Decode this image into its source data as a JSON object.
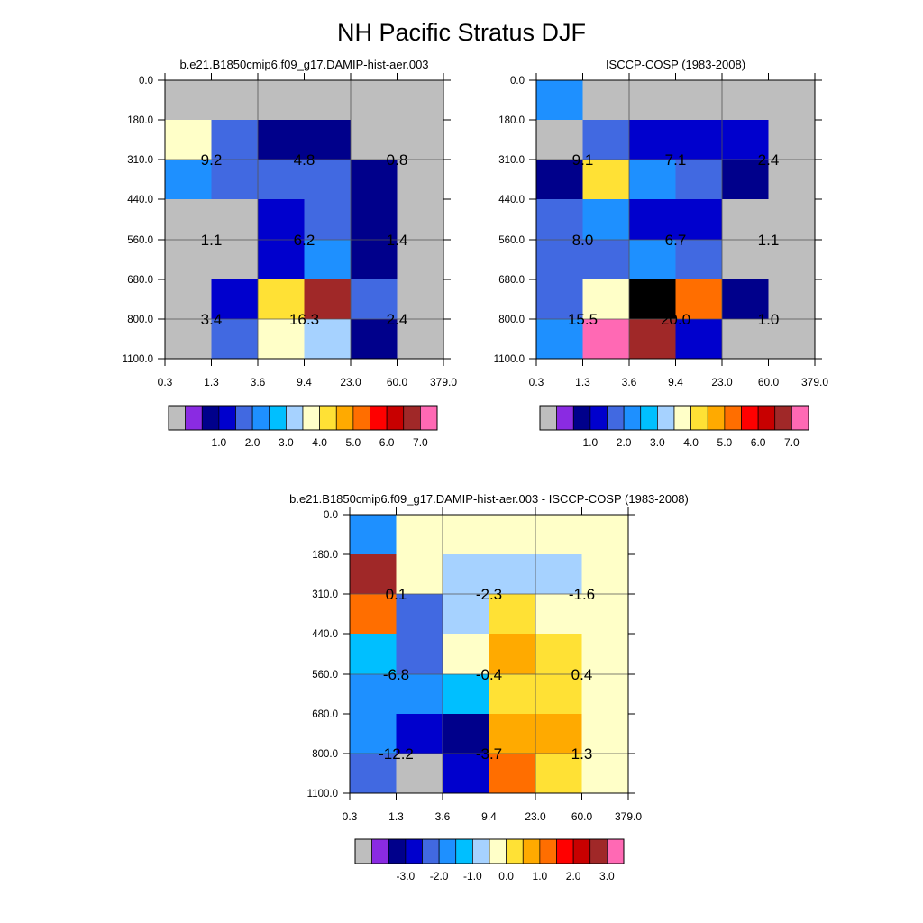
{
  "figure": {
    "title": "NH Pacific Stratus DJF"
  },
  "chart_data": [
    {
      "type": "heatmap",
      "title": "b.e21.B1850cmip6.f09_g17.DAMIP-hist-aer.003",
      "x_ticks": [
        "0.3",
        "1.3",
        "3.6",
        "9.4",
        "23.0",
        "60.0",
        "379.0"
      ],
      "y_ticks": [
        "0.0",
        "180.0",
        "310.0",
        "440.0",
        "560.0",
        "680.0",
        "800.0",
        "1100.0"
      ],
      "colorbar_labels": [
        "1.0",
        "2.0",
        "3.0",
        "4.0",
        "5.0",
        "6.0",
        "7.0"
      ],
      "cells": [
        [
          0,
          0,
          0,
          0,
          0,
          0
        ],
        [
          8,
          4,
          2,
          2,
          0,
          0
        ],
        [
          5,
          4,
          4,
          4,
          2,
          0
        ],
        [
          0,
          0,
          3,
          4,
          2,
          0
        ],
        [
          0,
          0,
          3,
          5,
          2,
          0
        ],
        [
          0,
          3,
          9,
          14,
          4,
          0
        ],
        [
          0,
          4,
          8,
          7,
          2,
          0
        ]
      ],
      "sums": [
        {
          "r": 1,
          "c": 1,
          "v": "9.2"
        },
        {
          "r": 1,
          "c": 3,
          "v": "4.8"
        },
        {
          "r": 1,
          "c": 5,
          "v": "0.8"
        },
        {
          "r": 3,
          "c": 1,
          "v": "1.1"
        },
        {
          "r": 3,
          "c": 3,
          "v": "6.2"
        },
        {
          "r": 3,
          "c": 5,
          "v": "1.4"
        },
        {
          "r": 5,
          "c": 1,
          "v": "3.4"
        },
        {
          "r": 5,
          "c": 3,
          "v": "16.3"
        },
        {
          "r": 5,
          "c": 5,
          "v": "2.4"
        }
      ]
    },
    {
      "type": "heatmap",
      "title": "ISCCP-COSP (1983-2008)",
      "x_ticks": [
        "0.3",
        "1.3",
        "3.6",
        "9.4",
        "23.0",
        "60.0",
        "379.0"
      ],
      "y_ticks": [
        "0.0",
        "180.0",
        "310.0",
        "440.0",
        "560.0",
        "680.0",
        "800.0",
        "1100.0"
      ],
      "colorbar_labels": [
        "1.0",
        "2.0",
        "3.0",
        "4.0",
        "5.0",
        "6.0",
        "7.0"
      ],
      "cells": [
        [
          5,
          0,
          0,
          0,
          0,
          0
        ],
        [
          0,
          4,
          3,
          3,
          3,
          0
        ],
        [
          2,
          9,
          5,
          4,
          2,
          0
        ],
        [
          4,
          5,
          3,
          3,
          0,
          0
        ],
        [
          4,
          4,
          5,
          4,
          0,
          0
        ],
        [
          4,
          8,
          16,
          11,
          2,
          0
        ],
        [
          5,
          15,
          14,
          3,
          0,
          0
        ]
      ],
      "sums": [
        {
          "r": 1,
          "c": 1,
          "v": "9.1"
        },
        {
          "r": 1,
          "c": 3,
          "v": "7.1"
        },
        {
          "r": 1,
          "c": 5,
          "v": "2.4"
        },
        {
          "r": 3,
          "c": 1,
          "v": "8.0"
        },
        {
          "r": 3,
          "c": 3,
          "v": "6.7"
        },
        {
          "r": 3,
          "c": 5,
          "v": "1.1"
        },
        {
          "r": 5,
          "c": 1,
          "v": "15.5"
        },
        {
          "r": 5,
          "c": 3,
          "v": "20.0"
        },
        {
          "r": 5,
          "c": 5,
          "v": "1.0"
        }
      ]
    },
    {
      "type": "heatmap",
      "title": "b.e21.B1850cmip6.f09_g17.DAMIP-hist-aer.003 - ISCCP-COSP (1983-2008)",
      "x_ticks": [
        "0.3",
        "1.3",
        "3.6",
        "9.4",
        "23.0",
        "60.0",
        "379.0"
      ],
      "y_ticks": [
        "0.0",
        "180.0",
        "310.0",
        "440.0",
        "560.0",
        "680.0",
        "800.0",
        "1100.0"
      ],
      "colorbar_labels": [
        "-3.0",
        "-2.0",
        "-1.0",
        "0.0",
        "1.0",
        "2.0",
        "3.0"
      ],
      "cells": [
        [
          5,
          8,
          8,
          8,
          8,
          8
        ],
        [
          14,
          8,
          7,
          7,
          7,
          8
        ],
        [
          11,
          4,
          7,
          9,
          8,
          8
        ],
        [
          6,
          4,
          8,
          10,
          9,
          8
        ],
        [
          5,
          5,
          6,
          9,
          9,
          8
        ],
        [
          5,
          3,
          2,
          10,
          10,
          8
        ],
        [
          4,
          0,
          3,
          11,
          9,
          8
        ]
      ],
      "sums": [
        {
          "r": 1,
          "c": 1,
          "v": "0.1"
        },
        {
          "r": 1,
          "c": 3,
          "v": "-2.3"
        },
        {
          "r": 1,
          "c": 5,
          "v": "-1.6"
        },
        {
          "r": 3,
          "c": 1,
          "v": "-6.8"
        },
        {
          "r": 3,
          "c": 3,
          "v": "-0.4"
        },
        {
          "r": 3,
          "c": 5,
          "v": "0.4"
        },
        {
          "r": 5,
          "c": 1,
          "v": "-12.2"
        },
        {
          "r": 5,
          "c": 3,
          "v": "-3.7"
        },
        {
          "r": 5,
          "c": 5,
          "v": "1.3"
        }
      ]
    }
  ],
  "colors": {
    "palette": [
      "#bebebe",
      "#8a2be2",
      "#00008b",
      "#0000cd",
      "#4169e1",
      "#1e90ff",
      "#00bfff",
      "#a6d2ff",
      "#ffffc8",
      "#ffe135",
      "#ffaa00",
      "#ff6e00",
      "#ff0000",
      "#c80000",
      "#a02828",
      "#ff69b4"
    ],
    "grid": "#555555",
    "text": "#000000"
  }
}
